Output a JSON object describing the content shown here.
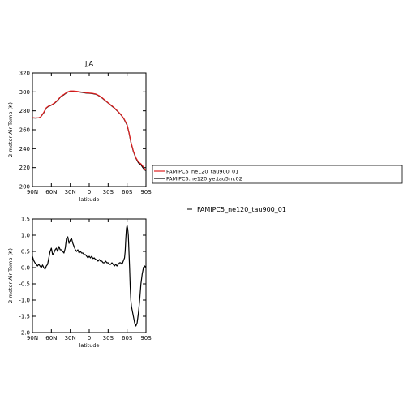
{
  "chart_data": [
    {
      "type": "line",
      "title": "JJA",
      "xlabel": "latitude",
      "ylabel": "2-meter Air Temp (K)",
      "xlim": [
        90,
        -90
      ],
      "ylim": [
        200,
        320
      ],
      "xticks": [
        {
          "value": 90,
          "label": "90N"
        },
        {
          "value": 60,
          "label": "60N"
        },
        {
          "value": 30,
          "label": "30N"
        },
        {
          "value": 0,
          "label": "0"
        },
        {
          "value": -30,
          "label": "30S"
        },
        {
          "value": -60,
          "label": "60S"
        },
        {
          "value": -90,
          "label": "90S"
        }
      ],
      "yticks": [
        200,
        220,
        240,
        260,
        280,
        300,
        320
      ],
      "legend": {
        "placement": "right",
        "entries": [
          {
            "label": "FAMIPC5_ne120_tau900_01",
            "color": "#e02020"
          },
          {
            "label": "FAMIPC5.ne120.ye.tau5m.02",
            "color": "#000000"
          }
        ]
      },
      "x": [
        90,
        85,
        80,
        77,
        72,
        68,
        65,
        60,
        55,
        50,
        45,
        40,
        35,
        30,
        25,
        20,
        15,
        10,
        5,
        0,
        -5,
        -10,
        -15,
        -20,
        -25,
        -30,
        -35,
        -40,
        -45,
        -50,
        -55,
        -60,
        -63,
        -66,
        -70,
        -74,
        -78,
        -82,
        -85,
        -88,
        -90
      ],
      "series": [
        {
          "name": "FAMIPC5.ne120.ye.tau5m.02",
          "color": "#000000",
          "values": [
            272.5,
            272.3,
            272.6,
            273.5,
            278,
            283,
            284.5,
            286,
            288,
            291,
            295,
            297,
            299.5,
            300.7,
            300.6,
            300.3,
            299.8,
            299.3,
            298.8,
            298.5,
            298.2,
            297.6,
            296,
            293.8,
            291,
            288.2,
            285.5,
            282.8,
            279.5,
            276,
            271.5,
            265,
            257,
            247,
            237,
            230,
            225,
            223,
            220,
            217.5,
            216.8
          ]
        },
        {
          "name": "FAMIPC5_ne120_tau900_01",
          "color": "#e02020",
          "values": [
            272.8,
            272.5,
            272.7,
            273.5,
            278.5,
            283.3,
            284.8,
            286.2,
            288.3,
            291.4,
            295.4,
            297.4,
            299.8,
            301,
            300.9,
            300.6,
            300.1,
            299.6,
            299.1,
            298.8,
            298.5,
            297.9,
            296.3,
            294.1,
            291.3,
            288.5,
            285.8,
            283.1,
            279.8,
            276.3,
            271.8,
            265.5,
            257.5,
            247.5,
            237.5,
            230.5,
            226,
            224,
            221.5,
            218.5,
            217.5
          ]
        }
      ]
    },
    {
      "type": "line",
      "title": "",
      "xlabel": "latitude",
      "ylabel": "2-meter Air Temp (K)",
      "xlim": [
        90,
        -90
      ],
      "ylim": [
        -2.0,
        1.5
      ],
      "xticks": [
        {
          "value": 90,
          "label": "90N"
        },
        {
          "value": 60,
          "label": "60N"
        },
        {
          "value": 30,
          "label": "30N"
        },
        {
          "value": 0,
          "label": "0"
        },
        {
          "value": -30,
          "label": "30S"
        },
        {
          "value": -60,
          "label": "60S"
        },
        {
          "value": -90,
          "label": "90S"
        }
      ],
      "yticks": [
        -2.0,
        -1.5,
        -1.0,
        -0.5,
        0.0,
        0.5,
        1.0,
        1.5
      ],
      "ytick_labels": [
        "-2.0",
        "-1.5",
        "-1.0",
        "-0.5",
        "0.0",
        "0.5",
        "1.0",
        "1.5"
      ],
      "legend": {
        "placement": "right",
        "entries": [
          {
            "label": "FAMIPC5_ne120_tau900_01",
            "color": "#000000"
          }
        ]
      },
      "x": [
        90,
        88,
        86,
        84,
        82,
        80,
        78,
        76,
        74,
        72,
        70,
        68,
        66,
        64,
        62,
        60,
        58,
        56,
        54,
        52,
        50,
        48,
        46,
        44,
        42,
        40,
        38,
        36,
        34,
        32,
        30,
        28,
        26,
        24,
        22,
        20,
        18,
        16,
        14,
        12,
        10,
        8,
        6,
        4,
        2,
        0,
        -2,
        -4,
        -6,
        -8,
        -10,
        -12,
        -14,
        -16,
        -18,
        -20,
        -22,
        -24,
        -26,
        -28,
        -30,
        -32,
        -34,
        -36,
        -38,
        -40,
        -42,
        -44,
        -46,
        -48,
        -50,
        -52,
        -54,
        -56,
        -57,
        -58,
        -59,
        -60,
        -61,
        -62,
        -63,
        -64,
        -65,
        -66,
        -67,
        -68,
        -70,
        -72,
        -74,
        -76,
        -78,
        -80,
        -82,
        -84,
        -86,
        -88,
        -90
      ],
      "series": [
        {
          "name": "FAMIPC5_ne120_tau900_01",
          "color": "#000000",
          "values": [
            0.35,
            0.22,
            0.15,
            0.1,
            0.05,
            0.1,
            0.05,
            0.0,
            0.08,
            0.0,
            -0.05,
            0.05,
            0.1,
            0.3,
            0.5,
            0.6,
            0.4,
            0.45,
            0.55,
            0.6,
            0.5,
            0.65,
            0.55,
            0.55,
            0.5,
            0.45,
            0.6,
            0.9,
            0.95,
            0.75,
            0.85,
            0.9,
            0.75,
            0.65,
            0.55,
            0.5,
            0.55,
            0.45,
            0.5,
            0.45,
            0.45,
            0.4,
            0.4,
            0.35,
            0.3,
            0.35,
            0.3,
            0.35,
            0.28,
            0.3,
            0.25,
            0.25,
            0.2,
            0.25,
            0.2,
            0.2,
            0.15,
            0.15,
            0.2,
            0.15,
            0.15,
            0.1,
            0.1,
            0.15,
            0.1,
            0.05,
            0.1,
            0.05,
            0.1,
            0.15,
            0.15,
            0.1,
            0.2,
            0.3,
            0.5,
            0.9,
            1.2,
            1.3,
            1.2,
            1.0,
            0.5,
            0.0,
            -0.6,
            -1.0,
            -1.2,
            -1.3,
            -1.5,
            -1.7,
            -1.8,
            -1.7,
            -1.4,
            -1.0,
            -0.5,
            -0.2,
            0.0,
            0.05,
            0.02
          ]
        }
      ]
    }
  ]
}
